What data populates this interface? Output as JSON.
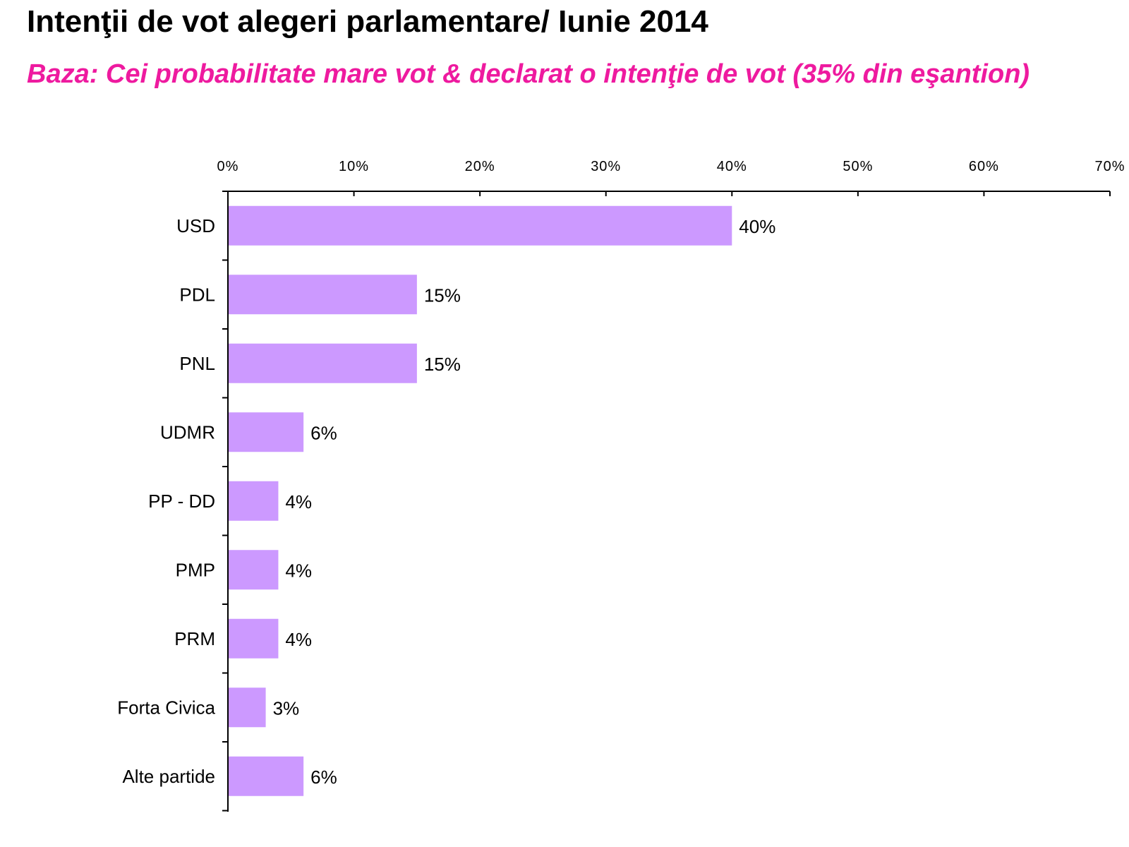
{
  "colors": {
    "bar": "#cc99ff",
    "subtitle": "#ee1a9f",
    "axis": "#000000"
  },
  "chart_data": {
    "type": "bar",
    "orientation": "horizontal",
    "title": "Intenţii de vot alegeri parlamentare/ Iunie 2014",
    "subtitle": "Baza: Cei probabilitate mare vot & declarat o intenţie de vot (35% din eşantion)",
    "xlabel": "",
    "ylabel": "",
    "xlim": [
      0,
      70
    ],
    "x_ticks": [
      0,
      10,
      20,
      30,
      40,
      50,
      60,
      70
    ],
    "x_tick_labels": [
      "0%",
      "10%",
      "20%",
      "30%",
      "40%",
      "50%",
      "60%",
      "70%"
    ],
    "x_axis_position": "top",
    "grid": false,
    "categories": [
      "USD",
      "PDL",
      "PNL",
      "UDMR",
      "PP - DD",
      "PMP",
      "PRM",
      "Forta Civica",
      "Alte partide"
    ],
    "values": [
      40,
      15,
      15,
      6,
      4,
      4,
      4,
      3,
      6
    ],
    "value_labels": [
      "40%",
      "15%",
      "15%",
      "6%",
      "4%",
      "4%",
      "4%",
      "3%",
      "6%"
    ]
  }
}
